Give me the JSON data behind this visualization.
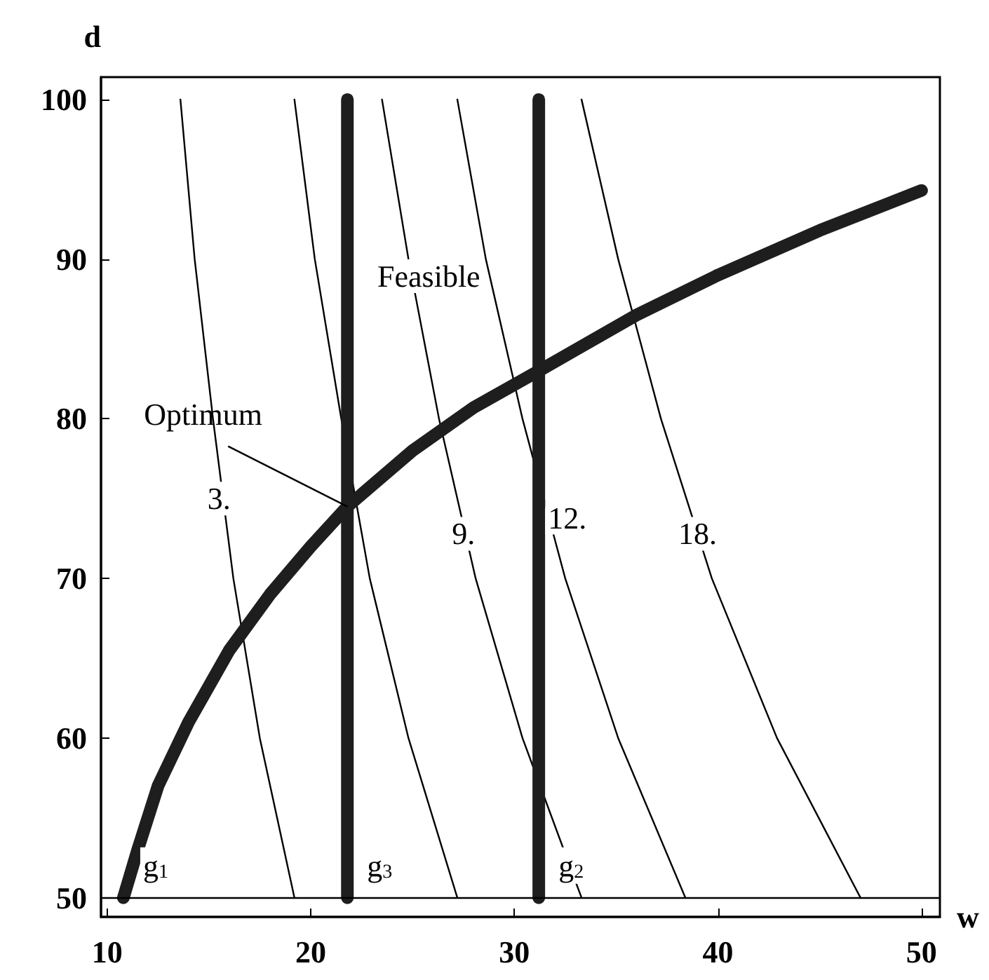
{
  "chart_data": {
    "type": "line",
    "xlabel": "w",
    "ylabel": "d",
    "xlim": [
      9.7,
      50.9
    ],
    "ylim": [
      48.8,
      101.4
    ],
    "xticks": [
      10,
      20,
      30,
      40,
      50
    ],
    "yticks": [
      50,
      60,
      70,
      80,
      90,
      100
    ],
    "grid": false,
    "marker": "none",
    "line_style": "solid",
    "series": [
      {
        "color": "#000000",
        "x": [
          13.6,
          14.3,
          15.2,
          16.2,
          17.5,
          19.2
        ],
        "values": [
          100,
          90,
          80,
          70,
          60,
          50
        ]
      },
      {
        "color": "#000000",
        "x": [
          19.2,
          20.2,
          21.5,
          22.9,
          24.8,
          27.2
        ],
        "values": [
          100,
          90,
          80,
          70,
          60,
          50
        ]
      },
      {
        "color": "#000000",
        "x": [
          23.5,
          24.8,
          26.3,
          28.1,
          30.4,
          33.3
        ],
        "values": [
          100,
          90,
          80,
          70,
          60,
          50
        ]
      },
      {
        "color": "#000000",
        "x": [
          27.2,
          28.6,
          30.4,
          32.5,
          35.1,
          38.4
        ],
        "values": [
          100,
          90,
          80,
          70,
          60,
          50
        ]
      },
      {
        "color": "#000000",
        "x": [
          33.3,
          35.1,
          37.2,
          39.7,
          42.9,
          47.0
        ],
        "values": [
          100,
          90,
          80,
          70,
          60,
          50
        ]
      },
      {
        "color": "#1e1e1e",
        "x": [
          10.8,
          11.5,
          12.5,
          14,
          16,
          18,
          20,
          21.8,
          25,
          28,
          31.2,
          36,
          40,
          45,
          50
        ],
        "values": [
          50,
          53,
          57,
          61,
          65.5,
          69,
          72,
          74.5,
          78,
          80.7,
          83,
          86.5,
          89,
          91.8,
          94.3
        ]
      },
      {
        "color": "#1e1e1e",
        "x": [
          31.2,
          31.2
        ],
        "values": [
          50,
          100
        ]
      },
      {
        "color": "#1e1e1e",
        "x": [
          21.8,
          21.8
        ],
        "values": [
          50,
          100
        ]
      }
    ],
    "ref_lines": [
      {
        "axis": "y",
        "value": 50,
        "color": "#000000"
      }
    ],
    "annotations": [
      {
        "text": "Optimum",
        "x": 21.8,
        "y": 74.5
      },
      "Feasible",
      {
        "text": "3.",
        "x": 15.5,
        "y": 75
      },
      {
        "text": "9.",
        "x": 27.5,
        "y": 72.8
      },
      {
        "text": "12.",
        "x": 32.6,
        "y": 73.8
      },
      {
        "text": "18.",
        "x": 39.0,
        "y": 72.8
      },
      {
        "text": "g$_{1}$",
        "x": 10.8,
        "y": 50
      },
      {
        "text": "g$_{3}$",
        "x": 21.8,
        "y": 50
      },
      {
        "text": "g$_{2}$",
        "x": 31.2,
        "y": 50
      }
    ]
  }
}
